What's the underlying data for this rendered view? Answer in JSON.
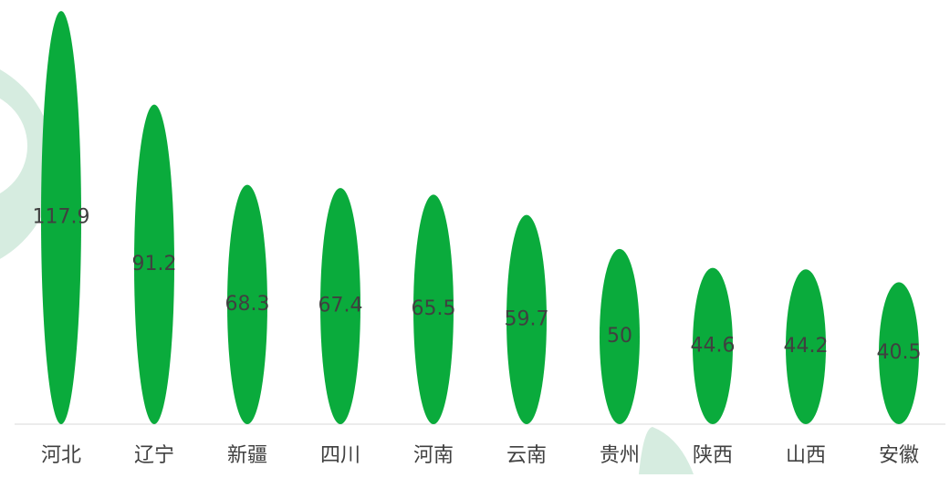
{
  "chart_data": {
    "type": "bar",
    "categories": [
      "河北",
      "辽宁",
      "新疆",
      "四川",
      "河南",
      "云南",
      "贵州",
      "陕西",
      "山西",
      "安徽"
    ],
    "values": [
      117.9,
      91.2,
      68.3,
      67.4,
      65.5,
      59.7,
      50,
      44.6,
      44.2,
      40.5
    ],
    "color": "#0aab3c",
    "ylim": [
      0,
      120
    ]
  }
}
